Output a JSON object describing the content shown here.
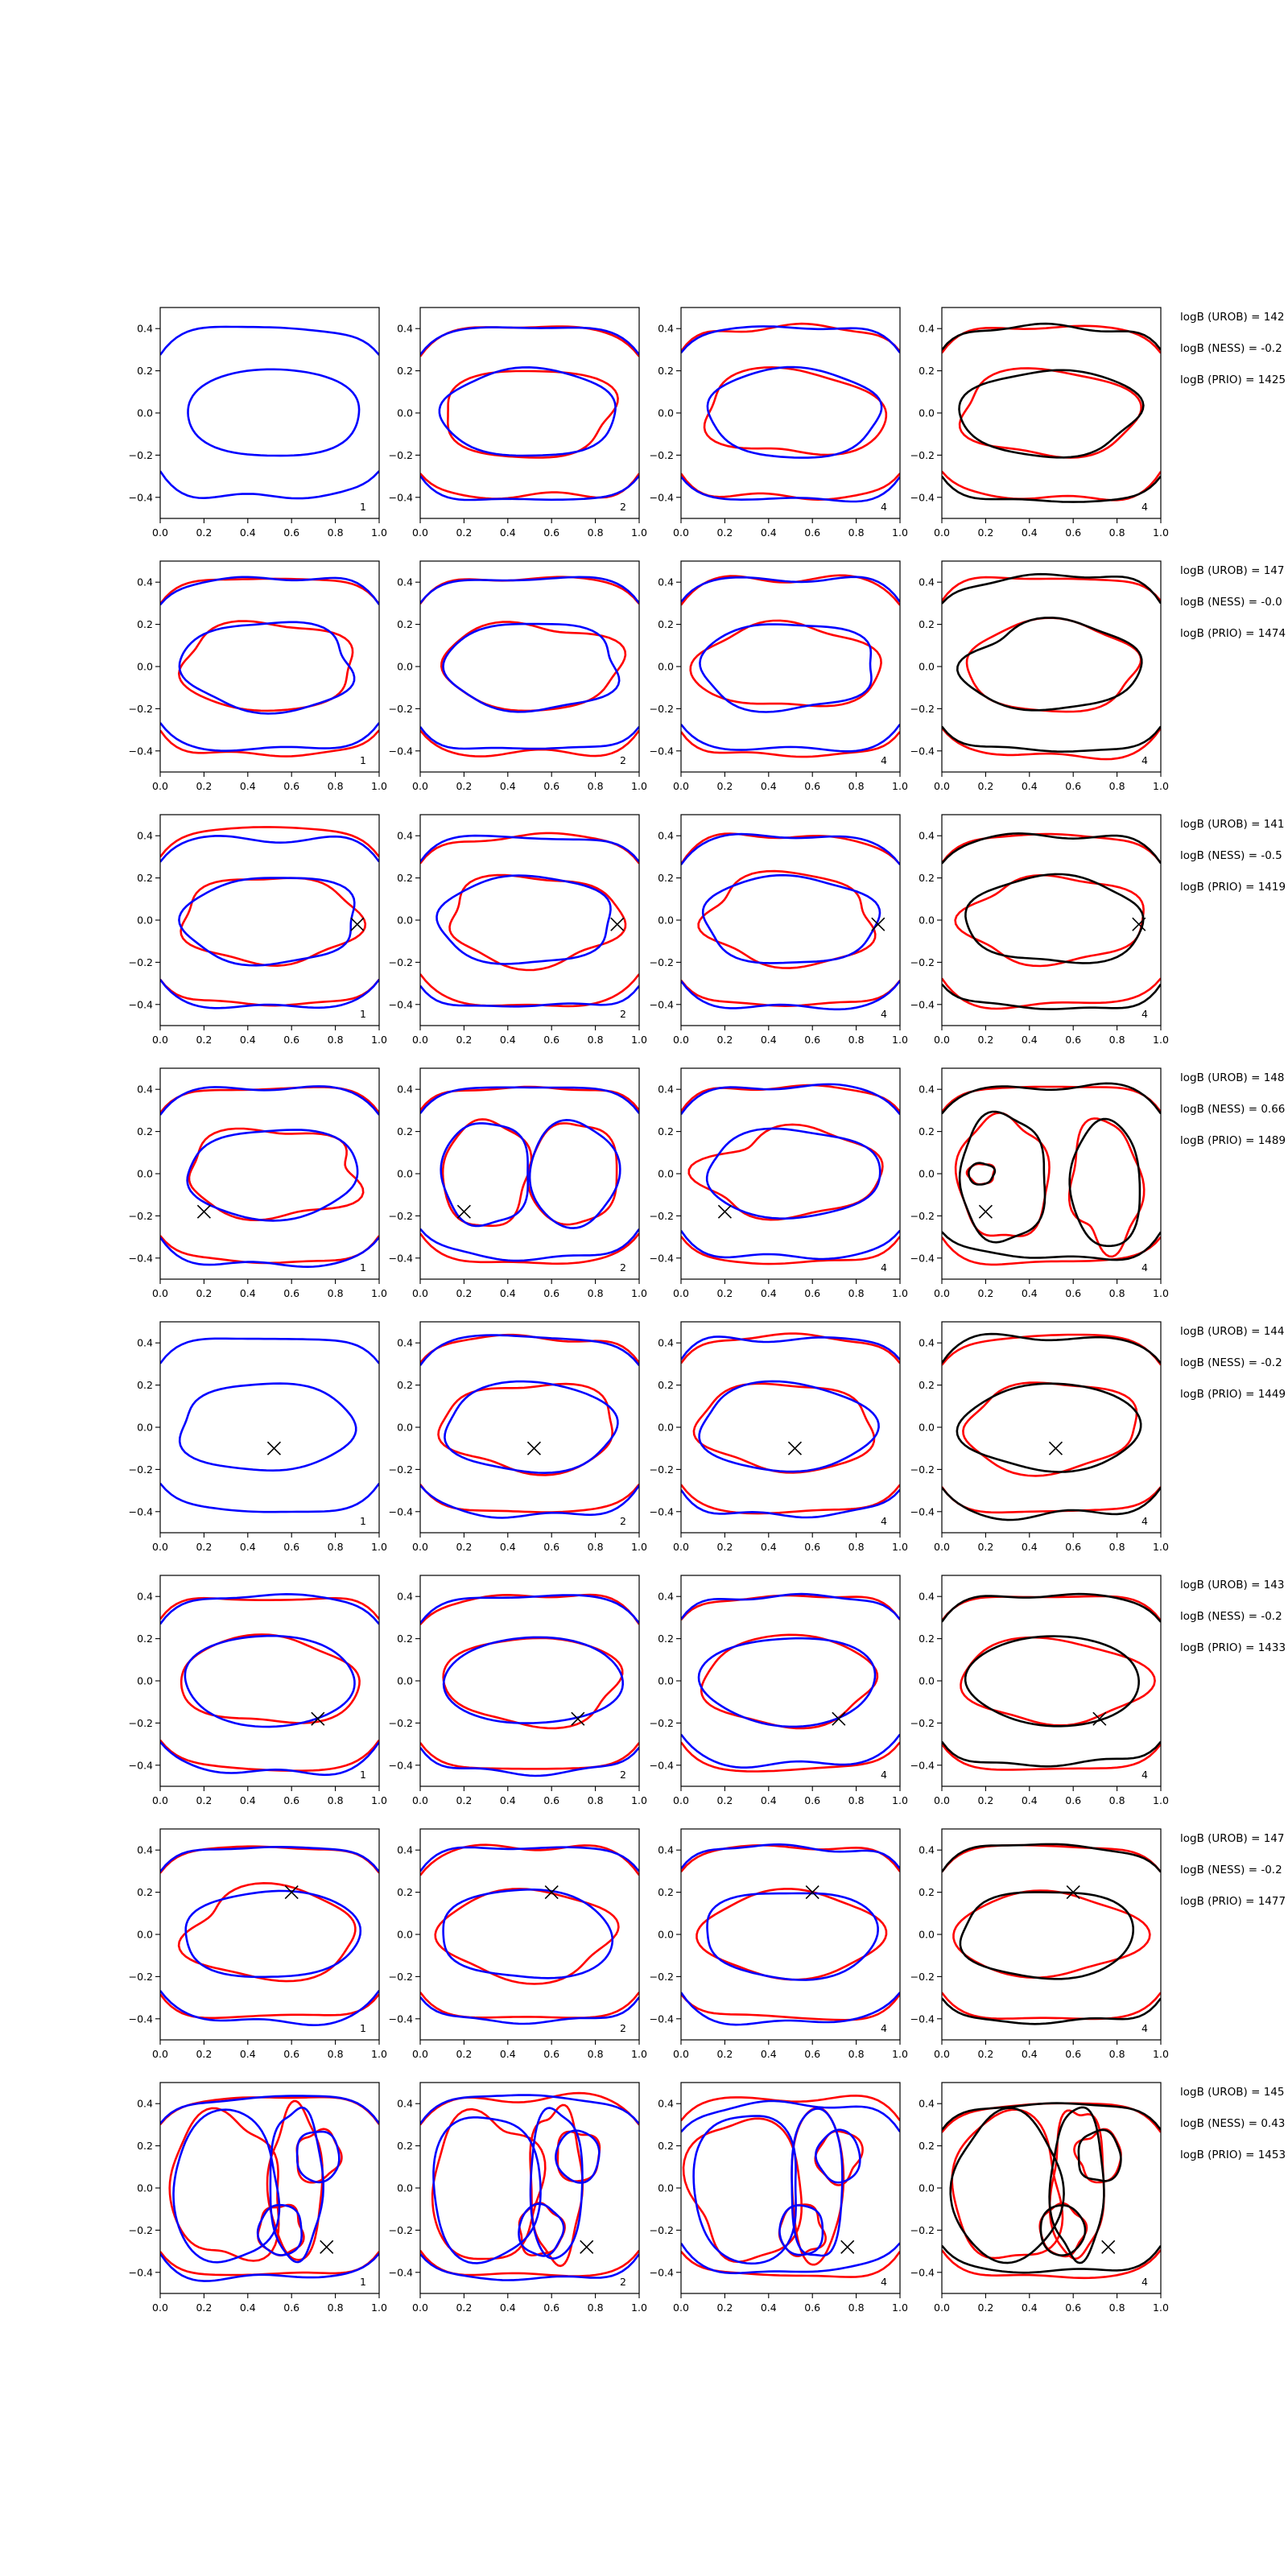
{
  "colors": {
    "blue": "#0000ff",
    "red": "#ff0000",
    "black": "#000000"
  },
  "chart_data": {
    "type": "line",
    "xlim": [
      0.0,
      1.0
    ],
    "ylim": [
      -0.5,
      0.5
    ],
    "xticks": [
      "0.0",
      "0.2",
      "0.4",
      "0.6",
      "0.8",
      "1.0"
    ],
    "yticks": [
      "0.4",
      "0.2",
      "0.0",
      "−0.2",
      "−0.4"
    ],
    "grid": false,
    "rows": [
      {
        "marker": null,
        "panels": [
          {
            "label": "1",
            "colors": [
              "blue"
            ],
            "profile": "flat"
          },
          {
            "label": "2",
            "colors": [
              "red",
              "blue"
            ],
            "profile": "flat"
          },
          {
            "label": "4",
            "colors": [
              "red",
              "blue"
            ],
            "profile": "flat"
          },
          {
            "label": "4",
            "colors": [
              "red",
              "black"
            ],
            "profile": "flat"
          }
        ],
        "annotations": [
          "logB (UROB) = 142",
          "logB (NESS) = -0.2",
          "logB (PRIO) = 1425"
        ]
      },
      {
        "marker": null,
        "panels": [
          {
            "label": "1",
            "colors": [
              "red",
              "blue"
            ],
            "profile": "flat"
          },
          {
            "label": "2",
            "colors": [
              "red",
              "blue"
            ],
            "profile": "flat"
          },
          {
            "label": "4",
            "colors": [
              "red",
              "blue"
            ],
            "profile": "flat"
          },
          {
            "label": "4",
            "colors": [
              "red",
              "black"
            ],
            "profile": "flat"
          }
        ],
        "annotations": [
          "logB (UROB) = 147",
          "logB (NESS) = -0.0",
          "logB (PRIO) = 1474"
        ]
      },
      {
        "marker": [
          0.9,
          -0.02
        ],
        "panels": [
          {
            "label": "1",
            "colors": [
              "red",
              "blue"
            ],
            "profile": "flat"
          },
          {
            "label": "2",
            "colors": [
              "red",
              "blue"
            ],
            "profile": "flat"
          },
          {
            "label": "4",
            "colors": [
              "red",
              "blue"
            ],
            "profile": "flat"
          },
          {
            "label": "4",
            "colors": [
              "red",
              "black"
            ],
            "profile": "flat"
          }
        ],
        "annotations": [
          "logB (UROB) = 141",
          "logB (NESS) = -0.5",
          "logB (PRIO) = 1419"
        ]
      },
      {
        "marker": [
          0.2,
          -0.18
        ],
        "panels": [
          {
            "label": "1",
            "colors": [
              "red",
              "blue"
            ],
            "profile": "flat"
          },
          {
            "label": "2",
            "colors": [
              "red",
              "blue"
            ],
            "profile": "figure8"
          },
          {
            "label": "4",
            "colors": [
              "red",
              "blue"
            ],
            "profile": "flat"
          },
          {
            "label": "4",
            "colors": [
              "red",
              "black"
            ],
            "profile": "split"
          }
        ],
        "annotations": [
          "logB (UROB) = 148",
          "logB (NESS) = 0.66",
          "logB (PRIO) = 1489"
        ]
      },
      {
        "marker": [
          0.52,
          -0.1
        ],
        "panels": [
          {
            "label": "1",
            "colors": [
              "blue"
            ],
            "profile": "flat"
          },
          {
            "label": "2",
            "colors": [
              "red",
              "blue"
            ],
            "profile": "flat"
          },
          {
            "label": "4",
            "colors": [
              "red",
              "blue"
            ],
            "profile": "flat"
          },
          {
            "label": "4",
            "colors": [
              "red",
              "black"
            ],
            "profile": "flat"
          }
        ],
        "annotations": [
          "logB (UROB) = 144",
          "logB (NESS) = -0.2",
          "logB (PRIO) = 1449"
        ]
      },
      {
        "marker": [
          0.72,
          -0.18
        ],
        "panels": [
          {
            "label": "1",
            "colors": [
              "red",
              "blue"
            ],
            "profile": "flat"
          },
          {
            "label": "2",
            "colors": [
              "red",
              "blue"
            ],
            "profile": "flat"
          },
          {
            "label": "4",
            "colors": [
              "red",
              "blue"
            ],
            "profile": "flat"
          },
          {
            "label": "4",
            "colors": [
              "red",
              "black"
            ],
            "profile": "flat"
          }
        ],
        "annotations": [
          "logB (UROB) = 143",
          "logB (NESS) = -0.2",
          "logB (PRIO) = 1433"
        ]
      },
      {
        "marker": [
          0.6,
          0.2
        ],
        "panels": [
          {
            "label": "1",
            "colors": [
              "red",
              "blue"
            ],
            "profile": "flat"
          },
          {
            "label": "2",
            "colors": [
              "red",
              "blue"
            ],
            "profile": "flat"
          },
          {
            "label": "4",
            "colors": [
              "red",
              "blue"
            ],
            "profile": "flat"
          },
          {
            "label": "4",
            "colors": [
              "red",
              "black"
            ],
            "profile": "flat"
          }
        ],
        "annotations": [
          "logB (UROB) = 147",
          "logB (NESS) = -0.2",
          "logB (PRIO) = 1477"
        ]
      },
      {
        "marker": [
          0.76,
          -0.28
        ],
        "panels": [
          {
            "label": "1",
            "colors": [
              "red",
              "blue"
            ],
            "profile": "blobs"
          },
          {
            "label": "2",
            "colors": [
              "red",
              "blue"
            ],
            "profile": "blobs"
          },
          {
            "label": "4",
            "colors": [
              "red",
              "blue"
            ],
            "profile": "blobs"
          },
          {
            "label": "4",
            "colors": [
              "red",
              "black"
            ],
            "profile": "blobs"
          }
        ],
        "annotations": [
          "logB (UROB) = 145",
          "logB (NESS) = 0.43",
          "logB (PRIO) = 1453"
        ]
      }
    ]
  }
}
